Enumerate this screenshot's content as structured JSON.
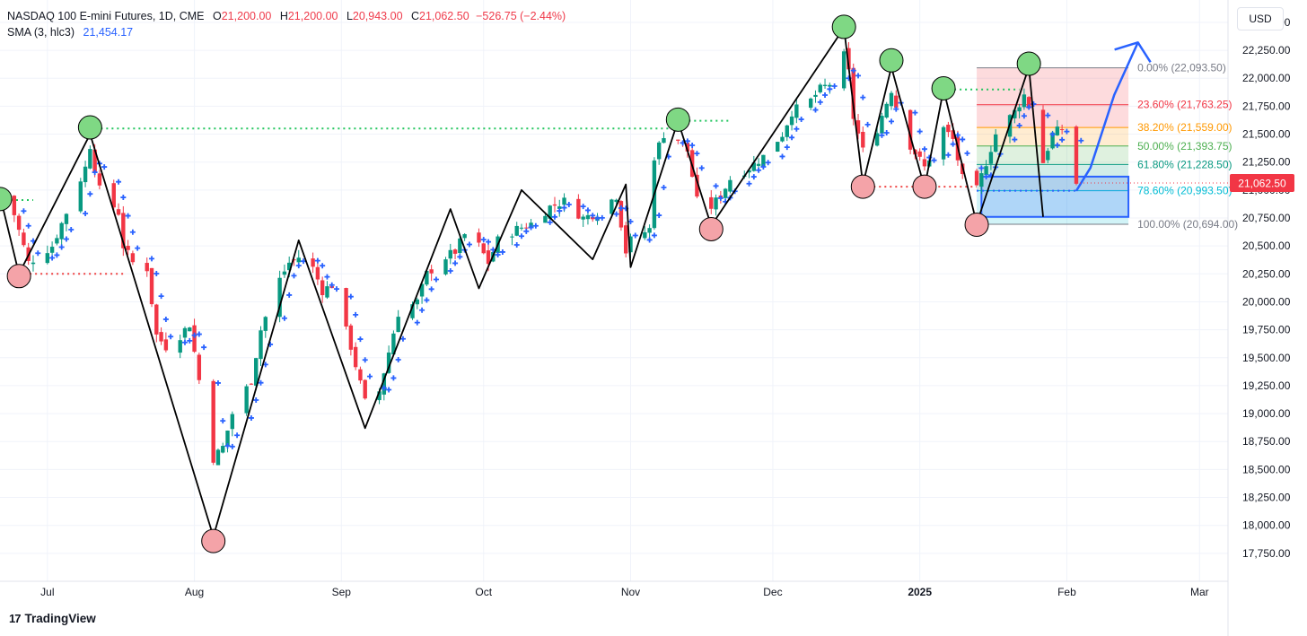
{
  "header": {
    "symbol": "NASDAQ 100 E-mini Futures, 1D, CME",
    "o_label": "O",
    "o_value": "21,200.00",
    "h_label": "H",
    "h_value": "21,200.00",
    "l_label": "L",
    "l_value": "20,943.00",
    "c_label": "C",
    "c_value": "21,062.50",
    "change": "−526.75 (−2.44%)",
    "sma_label": "SMA (3, hlc3)",
    "sma_value": "21,454.17"
  },
  "currency": "USD",
  "brand": "TradingView",
  "colors": {
    "up": "#089981",
    "down": "#f23645",
    "sma": "#2962ff",
    "swing_high": "#7fd884",
    "swing_low": "#f4a3a8",
    "fib_0": "#787b86",
    "fib_236": "#f23645",
    "fib_382": "#ff9800",
    "fib_50": "#4caf50",
    "fib_618": "#089981",
    "fib_786": "#00bcd4",
    "fib_100": "#787b86",
    "last_price_bg": "#f23645",
    "arrow": "#2962ff"
  },
  "chart_data": {
    "type": "candlestick",
    "interval": "1D",
    "ylim": [
      17500,
      22700
    ],
    "yticks": [
      17750,
      18000,
      18250,
      18500,
      18750,
      19000,
      19250,
      19500,
      19750,
      20000,
      20250,
      20500,
      20750,
      21000,
      21250,
      21500,
      21750,
      22000,
      22250,
      22500
    ],
    "ytick_labels": [
      "17,750.00",
      "18,000.00",
      "18,250.00",
      "18,500.00",
      "18,750.00",
      "19,000.00",
      "19,250.00",
      "19,500.00",
      "19,750.00",
      "20,000.00",
      "20,250.00",
      "20,500.00",
      "20,750.00",
      "21,000.00",
      "21,250.00",
      "21,500.00",
      "21,750.00",
      "22,000.00",
      "22,250.00",
      "22,500.00"
    ],
    "x_range": [
      "2024-06-21",
      "2025-03-07"
    ],
    "xticks": [
      {
        "date": "2024-07-01",
        "label": "Jul",
        "bold": false
      },
      {
        "date": "2024-08-01",
        "label": "Aug",
        "bold": false
      },
      {
        "date": "2024-09-01",
        "label": "Sep",
        "bold": false
      },
      {
        "date": "2024-10-01",
        "label": "Oct",
        "bold": false
      },
      {
        "date": "2024-11-01",
        "label": "Nov",
        "bold": false
      },
      {
        "date": "2024-12-01",
        "label": "Dec",
        "bold": false
      },
      {
        "date": "2025-01-01",
        "label": "2025",
        "bold": true
      },
      {
        "date": "2025-02-01",
        "label": "Feb",
        "bold": false
      },
      {
        "date": "2025-03-01",
        "label": "Mar",
        "bold": false
      }
    ],
    "price_path": [
      [
        "2024-06-21",
        20950
      ],
      [
        "2024-06-24",
        20780
      ],
      [
        "2024-06-27",
        20350
      ],
      [
        "2024-07-02",
        20500
      ],
      [
        "2024-07-05",
        20800
      ],
      [
        "2024-07-09",
        21200
      ],
      [
        "2024-07-10",
        21400
      ],
      [
        "2024-07-12",
        21000
      ],
      [
        "2024-07-16",
        20800
      ],
      [
        "2024-07-17",
        20500
      ],
      [
        "2024-07-19",
        20350
      ],
      [
        "2024-07-22",
        20300
      ],
      [
        "2024-07-24",
        19700
      ],
      [
        "2024-07-26",
        19600
      ],
      [
        "2024-07-29",
        19700
      ],
      [
        "2024-07-31",
        19800
      ],
      [
        "2024-08-02",
        19300
      ],
      [
        "2024-08-05",
        18600
      ],
      [
        "2024-08-07",
        18700
      ],
      [
        "2024-08-09",
        19000
      ],
      [
        "2024-08-13",
        19300
      ],
      [
        "2024-08-15",
        19750
      ],
      [
        "2024-08-19",
        20200
      ],
      [
        "2024-08-21",
        20350
      ],
      [
        "2024-08-23",
        20400
      ],
      [
        "2024-08-26",
        20300
      ],
      [
        "2024-08-28",
        20100
      ],
      [
        "2024-08-30",
        20150
      ],
      [
        "2024-09-03",
        19600
      ],
      [
        "2024-09-06",
        19100
      ],
      [
        "2024-09-09",
        19200
      ],
      [
        "2024-09-11",
        19550
      ],
      [
        "2024-09-13",
        19900
      ],
      [
        "2024-09-17",
        20000
      ],
      [
        "2024-09-19",
        20250
      ],
      [
        "2024-09-23",
        20400
      ],
      [
        "2024-09-25",
        20450
      ],
      [
        "2024-09-27",
        20600
      ],
      [
        "2024-09-30",
        20500
      ],
      [
        "2024-10-02",
        20350
      ],
      [
        "2024-10-04",
        20550
      ],
      [
        "2024-10-08",
        20650
      ],
      [
        "2024-10-11",
        20700
      ],
      [
        "2024-10-15",
        20850
      ],
      [
        "2024-10-18",
        20900
      ],
      [
        "2024-10-22",
        20750
      ],
      [
        "2024-10-25",
        20800
      ],
      [
        "2024-10-29",
        20950
      ],
      [
        "2024-10-31",
        20450
      ],
      [
        "2024-11-01",
        20550
      ],
      [
        "2024-11-05",
        20650
      ],
      [
        "2024-11-06",
        21300
      ],
      [
        "2024-11-08",
        21500
      ],
      [
        "2024-11-11",
        21450
      ],
      [
        "2024-11-13",
        21350
      ],
      [
        "2024-11-15",
        20900
      ],
      [
        "2024-11-18",
        20850
      ],
      [
        "2024-11-20",
        20950
      ],
      [
        "2024-11-22",
        21100
      ],
      [
        "2024-11-26",
        21200
      ],
      [
        "2024-11-29",
        21300
      ],
      [
        "2024-12-03",
        21500
      ],
      [
        "2024-12-05",
        21700
      ],
      [
        "2024-12-09",
        21800
      ],
      [
        "2024-12-11",
        21900
      ],
      [
        "2024-12-13",
        21950
      ],
      [
        "2024-12-16",
        22200
      ],
      [
        "2024-12-17",
        22050
      ],
      [
        "2024-12-18",
        21650
      ],
      [
        "2024-12-20",
        21350
      ],
      [
        "2024-12-23",
        21550
      ],
      [
        "2024-12-26",
        21900
      ],
      [
        "2024-12-27",
        21750
      ],
      [
        "2024-12-30",
        21400
      ],
      [
        "2025-01-02",
        21200
      ],
      [
        "2025-01-06",
        21550
      ],
      [
        "2025-01-08",
        21450
      ],
      [
        "2025-01-10",
        21100
      ],
      [
        "2025-01-13",
        21000
      ],
      [
        "2025-01-15",
        21250
      ],
      [
        "2025-01-17",
        21500
      ],
      [
        "2025-01-21",
        21700
      ],
      [
        "2025-01-23",
        21850
      ],
      [
        "2025-01-24",
        21750
      ],
      [
        "2025-01-27",
        21250
      ],
      [
        "2025-01-29",
        21500
      ],
      [
        "2025-01-31",
        21550
      ],
      [
        "2025-02-03",
        21062.5
      ]
    ],
    "wave_lines": [
      [
        [
          "2024-06-21",
          20950
        ],
        [
          "2024-06-25",
          20250
        ],
        [
          "2024-07-10",
          21500
        ],
        [
          "2024-08-05",
          17900
        ],
        [
          "2024-08-23",
          20550
        ],
        [
          "2024-09-06",
          18870
        ],
        [
          "2024-09-24",
          20830
        ],
        [
          "2024-09-30",
          20120
        ],
        [
          "2024-10-09",
          21000
        ],
        [
          "2024-10-24",
          20380
        ],
        [
          "2024-10-31",
          21050
        ],
        [
          "2024-11-01",
          20310
        ],
        [
          "2024-11-11",
          21620
        ],
        [
          "2024-11-18",
          20680
        ],
        [
          "2024-12-16",
          22450
        ],
        [
          "2024-12-20",
          21050
        ],
        [
          "2024-12-26",
          22100
        ],
        [
          "2025-01-02",
          21020
        ],
        [
          "2025-01-06",
          21900
        ],
        [
          "2025-01-13",
          20700
        ],
        [
          "2025-01-24",
          22100
        ],
        [
          "2025-01-27",
          20760
        ]
      ]
    ],
    "swing_highs": [
      [
        "2024-06-21",
        20920
      ],
      [
        "2024-07-10",
        21560
      ],
      [
        "2024-11-11",
        21630
      ],
      [
        "2024-12-16",
        22460
      ],
      [
        "2024-12-26",
        22160
      ],
      [
        "2025-01-06",
        21910
      ],
      [
        "2025-01-24",
        22130
      ]
    ],
    "swing_lows": [
      [
        "2024-06-25",
        20230
      ],
      [
        "2024-08-05",
        17860
      ],
      [
        "2024-11-18",
        20650
      ],
      [
        "2024-12-20",
        21030
      ],
      [
        "2025-01-02",
        21030
      ],
      [
        "2025-01-13",
        20690
      ]
    ],
    "dotted_levels": [
      {
        "from": "2024-06-21",
        "to": "2024-06-28",
        "price": 20910,
        "color": "green"
      },
      {
        "from": "2024-07-10",
        "to": "2024-11-11",
        "price": 21550,
        "color": "green"
      },
      {
        "from": "2024-11-11",
        "to": "2024-11-22",
        "price": 21620,
        "color": "green"
      },
      {
        "from": "2025-01-06",
        "to": "2025-01-22",
        "price": 21900,
        "color": "green"
      },
      {
        "from": "2024-06-25",
        "to": "2024-07-17",
        "price": 20250,
        "color": "red"
      },
      {
        "from": "2024-12-20",
        "to": "2025-01-13",
        "price": 21030,
        "color": "red"
      },
      {
        "from": "2025-01-13",
        "to": "2025-02-03",
        "price": 20993.5,
        "color": "blue"
      }
    ],
    "fibonacci": {
      "from": "2025-01-13",
      "to": "2025-02-14",
      "levels": [
        {
          "ratio": 0.0,
          "label": "0.00% (22,093.50)",
          "price": 22093.5
        },
        {
          "ratio": 0.236,
          "label": "23.60% (21,763.25)",
          "price": 21763.25
        },
        {
          "ratio": 0.382,
          "label": "38.20% (21,559.00)",
          "price": 21559.0
        },
        {
          "ratio": 0.5,
          "label": "50.00% (21,393.75)",
          "price": 21393.75
        },
        {
          "ratio": 0.618,
          "label": "61.80% (21,228.50)",
          "price": 21228.5
        },
        {
          "ratio": 0.786,
          "label": "78.60% (20,993.50)",
          "price": 20993.5
        },
        {
          "ratio": 1.0,
          "label": "100.00% (20,694.00)",
          "price": 20694.0
        }
      ]
    },
    "target_zone": {
      "from": "2025-01-14",
      "to": "2025-02-14",
      "top": 21120,
      "bottom": 20760
    },
    "forecast_arrow": [
      [
        "2025-02-03",
        20993
      ],
      [
        "2025-02-06",
        21200
      ],
      [
        "2025-02-11",
        21850
      ],
      [
        "2025-02-16",
        22320
      ]
    ],
    "last_price": {
      "value": 21062.5,
      "label": "21,062.50"
    }
  }
}
